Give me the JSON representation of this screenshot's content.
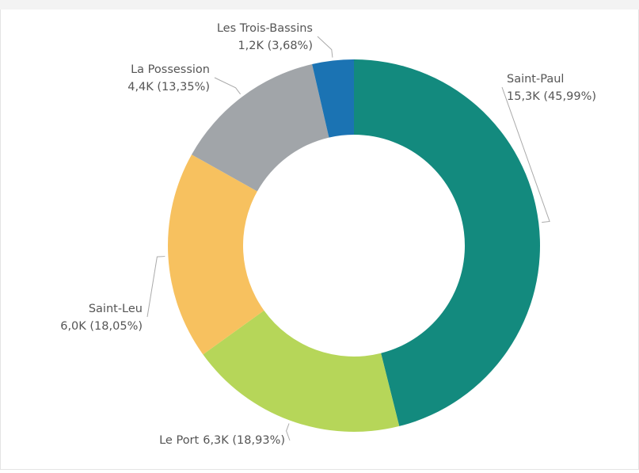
{
  "chart_data": {
    "type": "donut",
    "categories": [
      "Saint-Paul",
      "Le Port",
      "Saint-Leu",
      "La Possession",
      "Les Trois-Bassins"
    ],
    "values": [
      15300,
      6300,
      6000,
      4400,
      1200
    ],
    "value_labels": [
      "15,3K (45,99%)",
      "6,3K (18,93%)",
      "6,0K (18,05%)",
      "4,4K (13,35%)",
      "1,2K (3,68%)"
    ],
    "colors": [
      "#138a7e",
      "#b6d659",
      "#f7c15f",
      "#a1a5a9",
      "#1b73b3"
    ]
  }
}
